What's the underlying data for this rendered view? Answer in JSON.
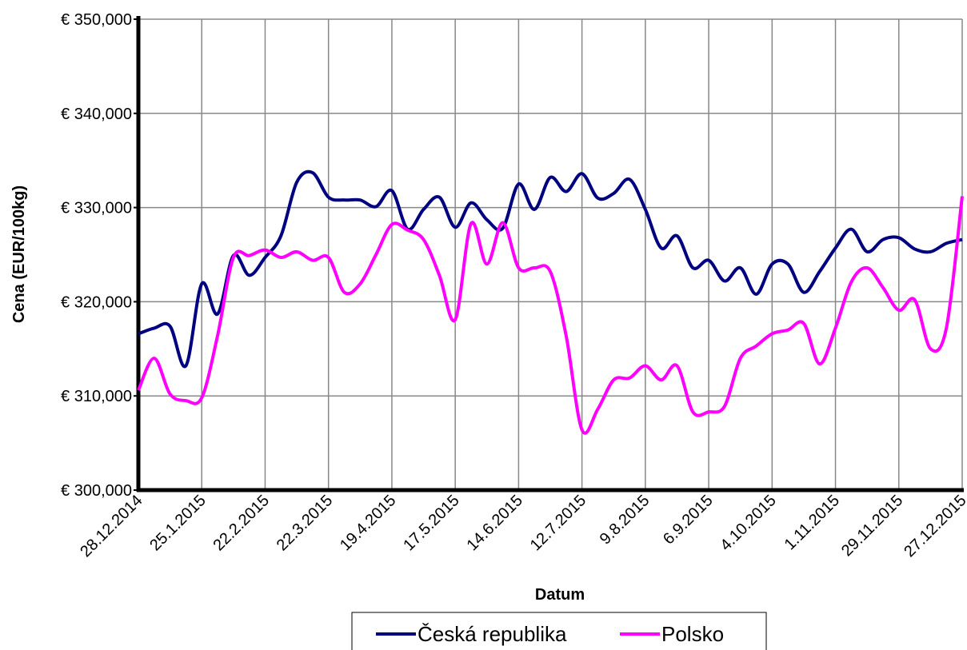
{
  "chart_data": {
    "type": "line",
    "xlabel": "Datum",
    "ylabel": "Cena (EUR/100kg)",
    "categories": [
      "28.12.2014",
      null,
      null,
      null,
      "25.1.2015",
      null,
      null,
      null,
      "22.2.2015",
      null,
      null,
      null,
      "22.3.2015",
      null,
      null,
      null,
      "19.4.2015",
      null,
      null,
      null,
      "17.5.2015",
      null,
      null,
      null,
      "14.6.2015",
      null,
      null,
      null,
      "12.7.2015",
      null,
      null,
      null,
      "9.8.2015",
      null,
      null,
      null,
      "6.9.2015",
      null,
      null,
      null,
      "4.10.2015",
      null,
      null,
      null,
      "1.11.2015",
      null,
      null,
      null,
      "29.11.2015",
      null,
      null,
      null,
      "27.12.2015"
    ],
    "series": [
      {
        "name": "Česká republika",
        "color": "#000080",
        "values": [
          316600,
          317200,
          317400,
          313200,
          321900,
          318700,
          324900,
          322800,
          324700,
          327000,
          332700,
          333700,
          331100,
          330800,
          330800,
          330100,
          331800,
          327700,
          329800,
          331100,
          327900,
          330500,
          328700,
          327800,
          332500,
          329800,
          333200,
          331700,
          333600,
          331000,
          331500,
          333000,
          329800,
          325700,
          327000,
          323600,
          324400,
          322200,
          323600,
          320800,
          324000,
          324000,
          321000,
          323200,
          325700,
          327700,
          325300,
          326600,
          326800,
          325600,
          325300,
          326200,
          326600
        ]
      },
      {
        "name": "Polsko",
        "color": "#ff00ff",
        "values": [
          310600,
          314000,
          310200,
          309500,
          309800,
          316400,
          324700,
          324900,
          325500,
          324700,
          325300,
          324400,
          324700,
          321000,
          321900,
          325000,
          328200,
          327600,
          326600,
          322800,
          318100,
          328300,
          324000,
          328400,
          323600,
          323600,
          323200,
          316400,
          306400,
          308600,
          311700,
          311900,
          313200,
          311700,
          313200,
          308300,
          308300,
          308900,
          314000,
          315300,
          316600,
          317000,
          317700,
          313400,
          317200,
          322100,
          323600,
          321500,
          319100,
          320200,
          315000,
          317200,
          331200
        ]
      }
    ],
    "ylim": [
      300000,
      350000
    ],
    "yticks": [
      {
        "value": 300000,
        "label": "€ 300,000"
      },
      {
        "value": 310000,
        "label": "€ 310,000"
      },
      {
        "value": 320000,
        "label": "€ 320,000"
      },
      {
        "value": 330000,
        "label": "€ 330,000"
      },
      {
        "value": 340000,
        "label": "€ 340,000"
      },
      {
        "value": 350000,
        "label": "€ 350,000"
      }
    ],
    "grid": true,
    "legend": "bottom"
  }
}
